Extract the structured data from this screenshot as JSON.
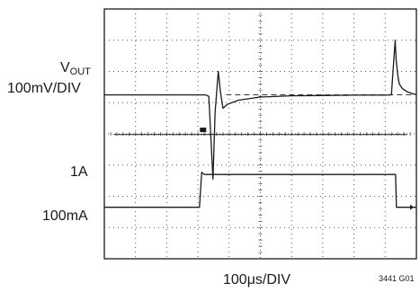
{
  "chart_data": {
    "type": "line",
    "description_free": true,
    "grid": true,
    "divisions": {
      "x": 10,
      "y": 8
    },
    "xlabel": "100μs/DIV",
    "x_per_div_us": 100,
    "figure_id": "3441 G01",
    "labels": {
      "vout_main": "V",
      "vout_sub": "OUT",
      "vout_scale": "100mV/DIV",
      "threshold": "1A",
      "current": "100mA"
    },
    "series": [
      {
        "trace": "vout",
        "x": [
          0,
          1.0,
          2.0,
          3.0,
          3.25,
          3.35,
          3.48,
          3.55,
          3.65,
          3.72,
          3.8,
          3.95,
          4.3,
          5.0,
          6.0,
          7.0,
          8.0,
          9.0,
          9.2,
          9.32,
          9.35,
          9.4,
          9.45,
          9.55,
          9.7,
          9.9,
          10.0
        ],
        "y": [
          5.25,
          5.25,
          5.25,
          5.25,
          5.25,
          5.2,
          2.55,
          4.7,
          6.0,
          5.35,
          4.82,
          4.95,
          5.08,
          5.18,
          5.22,
          5.23,
          5.24,
          5.24,
          5.25,
          7.0,
          6.4,
          5.9,
          5.6,
          5.45,
          5.35,
          5.28,
          5.26
        ]
      },
      {
        "trace": "current",
        "x": [
          0,
          1.0,
          2.0,
          3.05,
          3.12,
          3.2,
          4.0,
          5.0,
          6.0,
          7.0,
          8.0,
          9.0,
          9.33,
          9.36,
          10.0
        ],
        "y": [
          1.65,
          1.65,
          1.65,
          1.65,
          2.77,
          2.7,
          2.7,
          2.7,
          2.7,
          2.7,
          2.7,
          2.7,
          2.7,
          1.65,
          1.65
        ]
      },
      {
        "trace": "threshold",
        "x": [
          0.3,
          9.7
        ],
        "y": [
          3.98,
          3.98
        ]
      }
    ],
    "colors": {
      "trace": "#1a1a1a",
      "grid": "#555555"
    }
  }
}
